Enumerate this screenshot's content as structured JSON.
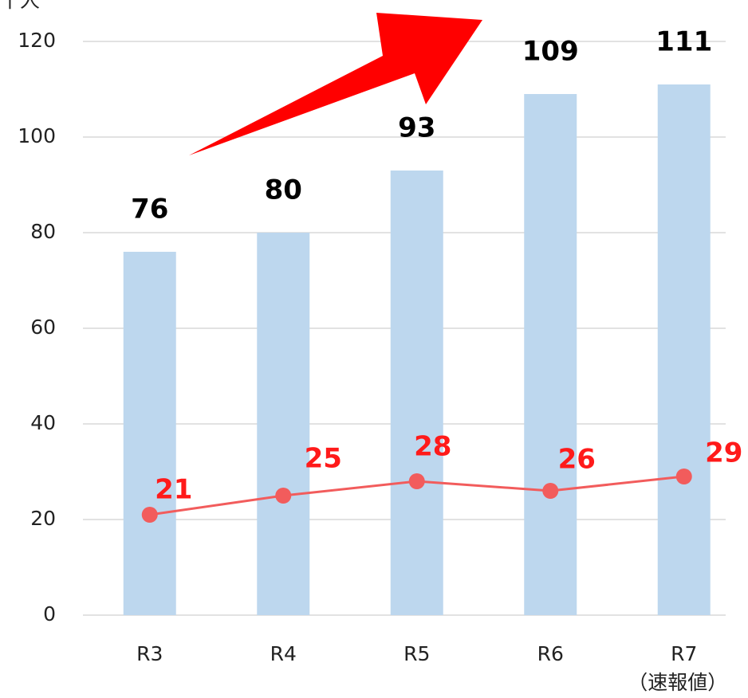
{
  "chart_data": {
    "type": "bar-line",
    "y_label": "千人",
    "categories": [
      "R3",
      "R4",
      "R5",
      "R6",
      "R7"
    ],
    "category_notes": [
      null,
      null,
      null,
      null,
      "（速報値）"
    ],
    "series": [
      {
        "type": "bar",
        "color": "#bdd7ee",
        "values": [
          76,
          80,
          93,
          109,
          111
        ]
      },
      {
        "type": "line",
        "color": "#f25c5c",
        "values": [
          21,
          25,
          28,
          26,
          29
        ]
      }
    ],
    "ylim": [
      0,
      120
    ],
    "yticks": [
      0,
      20,
      40,
      60,
      80,
      100,
      120
    ],
    "grid": true
  }
}
